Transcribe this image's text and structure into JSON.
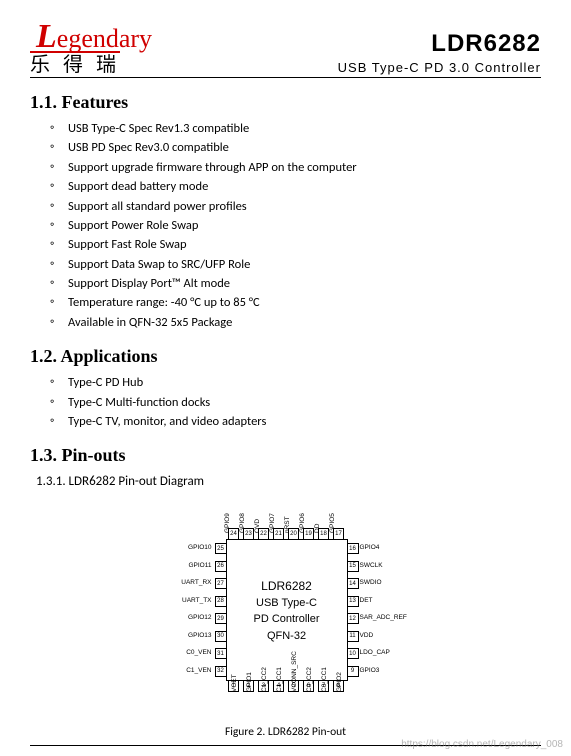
{
  "header": {
    "logo_script_initial": "L",
    "logo_script_rest": "egendary",
    "logo_cn": "乐 得 瑞",
    "part_number": "LDR6282",
    "subtitle": "USB  Type-C  PD 3.0  Controller"
  },
  "sections": {
    "features_title": "1.1. Features",
    "features": [
      "USB Type-C Spec Rev1.3 compatible",
      "USB PD Spec Rev3.0 compatible",
      "Support upgrade firmware through APP on the computer",
      "Support dead battery mode",
      "Support all standard power profiles",
      "Support Power Role Swap",
      "Support Fast Role Swap",
      "Support Data Swap to SRC/UFP Role",
      "Support Display Port™ Alt mode",
      "Temperature range: -40 °C up to 85 °C",
      "Available in QFN-32 5x5 Package"
    ],
    "applications_title": "1.2. Applications",
    "applications": [
      "Type-C PD Hub",
      "Type-C Multi-function docks",
      "Type-C TV, monitor, and video adapters"
    ],
    "pinouts_title": "1.3. Pin-outs",
    "pinouts_sub": "1.3.1. LDR6282 Pin-out Diagram"
  },
  "chip": {
    "center_lines": [
      "LDR6282",
      "USB Type-C",
      "PD Controller",
      "QFN-32"
    ],
    "left_pins": [
      {
        "num": "25",
        "label": "GPIO10"
      },
      {
        "num": "26",
        "label": "GPIO11"
      },
      {
        "num": "27",
        "label": "UART_RX"
      },
      {
        "num": "28",
        "label": "UART_TX"
      },
      {
        "num": "29",
        "label": "GPIO12"
      },
      {
        "num": "30",
        "label": "GPIO13"
      },
      {
        "num": "31",
        "label": "C0_VEN"
      },
      {
        "num": "32",
        "label": "C1_VEN"
      }
    ],
    "right_pins": [
      {
        "num": "16",
        "label": "GPIO4"
      },
      {
        "num": "15",
        "label": "SWCLK"
      },
      {
        "num": "14",
        "label": "SWDIO"
      },
      {
        "num": "13",
        "label": "DET"
      },
      {
        "num": "12",
        "label": "SAR_ADC_REF"
      },
      {
        "num": "11",
        "label": "VDD"
      },
      {
        "num": "10",
        "label": "LDO_CAP"
      },
      {
        "num": "9",
        "label": "GPIO3"
      }
    ],
    "top_pins": [
      {
        "num": "24",
        "label": "GPIO9"
      },
      {
        "num": "23",
        "label": "GPIO8"
      },
      {
        "num": "22",
        "label": "OVD"
      },
      {
        "num": "21",
        "label": "GPIO7"
      },
      {
        "num": "20",
        "label": "nRST"
      },
      {
        "num": "19",
        "label": "GPIO6"
      },
      {
        "num": "18",
        "label": "DD"
      },
      {
        "num": "17",
        "label": "GPIO5"
      }
    ],
    "bottom_pins": [
      {
        "num": "1",
        "label": "VOET"
      },
      {
        "num": "2",
        "label": "GPIO1"
      },
      {
        "num": "3",
        "label": "C1_CC2"
      },
      {
        "num": "4",
        "label": "C1_CC1"
      },
      {
        "num": "5",
        "label": "VCONN_SRC"
      },
      {
        "num": "6",
        "label": "C0_CC2"
      },
      {
        "num": "7",
        "label": "C0_CC1"
      },
      {
        "num": "8",
        "label": "GPIO2"
      }
    ],
    "caption": "Figure 2. LDR6282 Pin-out"
  },
  "watermark": "https://blog.csdn.net/Legendary_008"
}
